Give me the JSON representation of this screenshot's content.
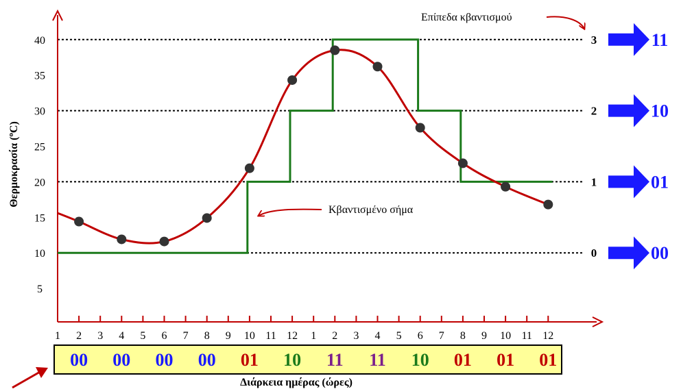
{
  "chart_data": {
    "type": "line",
    "ylabel_main": "Θερμοκρασία (",
    "ylabel_unit": "o",
    "ylabel_tail": "C)",
    "xlabel": "Διάρκεια ημέρας (ώρες)",
    "y_ticks": [
      "40",
      "35",
      "30",
      "25",
      "20",
      "15",
      "10",
      "5"
    ],
    "x_ticks": [
      "1",
      "2",
      "3",
      "4",
      "5",
      "6",
      "7",
      "8",
      "9",
      "10",
      "11",
      "12",
      "1",
      "2",
      "3",
      "4",
      "5",
      "6",
      "7",
      "8",
      "9",
      "10",
      "11",
      "12"
    ],
    "samples": [
      {
        "x": 2,
        "y": 14.4
      },
      {
        "x": 4,
        "y": 11.9
      },
      {
        "x": 6,
        "y": 11.6
      },
      {
        "x": 8,
        "y": 14.9
      },
      {
        "x": 10,
        "y": 21.9
      },
      {
        "x": 12,
        "y": 34.3
      },
      {
        "x": 14,
        "y": 38.5
      },
      {
        "x": 16,
        "y": 36.2
      },
      {
        "x": 18,
        "y": 27.6
      },
      {
        "x": 20,
        "y": 22.6
      },
      {
        "x": 22,
        "y": 19.3
      },
      {
        "x": 24,
        "y": 16.8
      }
    ],
    "quantized_levels": [
      0,
      0,
      0,
      0,
      1,
      2,
      3,
      3,
      2,
      1,
      1,
      1
    ],
    "level_values": [
      10,
      20,
      30,
      40
    ],
    "levels": [
      "0",
      "1",
      "2",
      "3"
    ],
    "codes": [
      "00",
      "01",
      "10",
      "11"
    ],
    "sequence": [
      "00",
      "00",
      "00",
      "00",
      "01",
      "10",
      "11",
      "11",
      "10",
      "01",
      "01",
      "01"
    ],
    "code_colors": {
      "00": "#1a1aff",
      "01": "#c00000",
      "10": "#1b7a1b",
      "11": "#7b1f8c"
    },
    "colors": {
      "signal": "#c00000",
      "quantized": "#1b7a1b",
      "axis": "#c00000",
      "arrow": "#1a1aff",
      "codebox": "#ffff99"
    }
  },
  "annotations": {
    "levels_label": "Επίπεδα κβαντισμού",
    "quantized_label": "Κβαντισμένο σήμα"
  }
}
